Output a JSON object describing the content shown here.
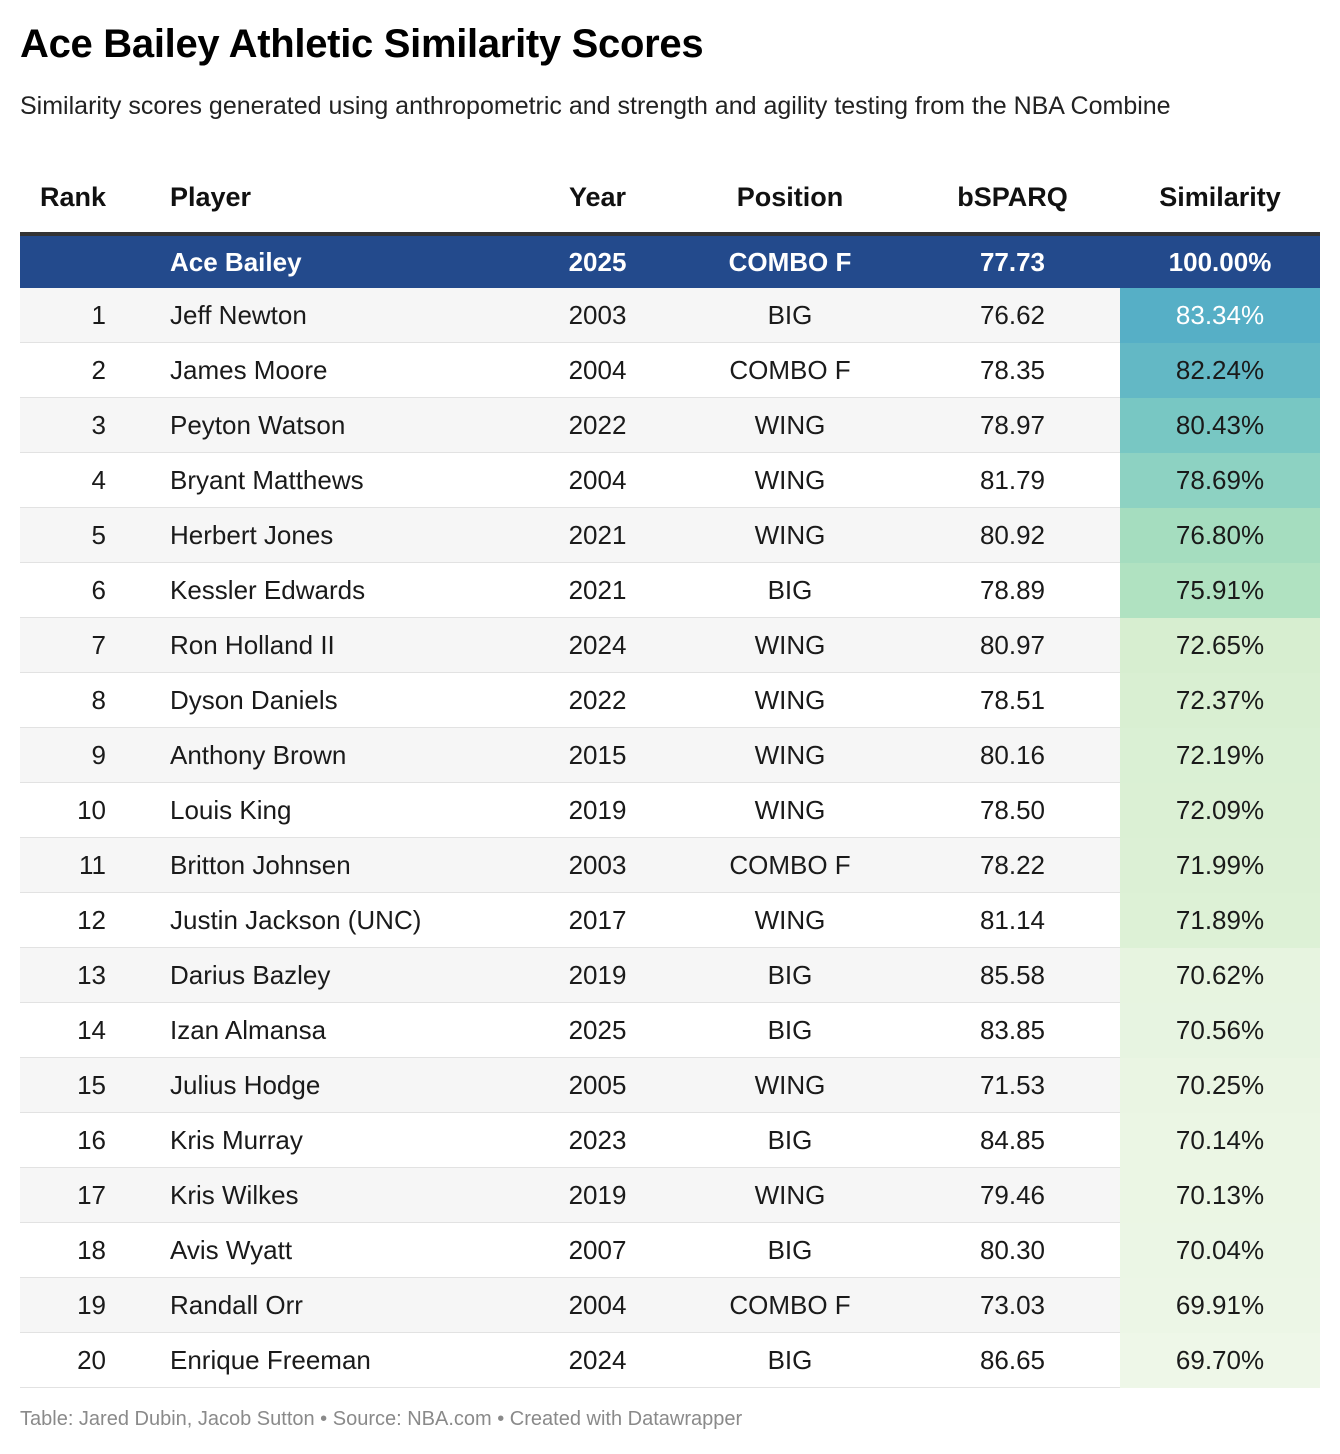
{
  "title": "Ace Bailey Athletic Similarity Scores",
  "subtitle": "Similarity scores generated using anthropometric and strength and agility testing from the NBA Combine",
  "footer": "Table: Jared Dubin, Jacob Sutton • Source: NBA.com • Created with Datawrapper",
  "chart_data": {
    "type": "table",
    "columns": [
      "Rank",
      "Player",
      "Year",
      "Position",
      "bSPARQ",
      "Similarity"
    ],
    "reference_row": {
      "rank": "",
      "player": "Ace Bailey",
      "year": "2025",
      "position": "COMBO F",
      "bsparq": "77.73",
      "similarity": "100.00%"
    },
    "rows": [
      {
        "rank": "1",
        "player": "Jeff Newton",
        "year": "2003",
        "position": "BIG",
        "bsparq": "76.62",
        "similarity": "83.34%",
        "similarity_value": 83.34
      },
      {
        "rank": "2",
        "player": "James Moore",
        "year": "2004",
        "position": "COMBO F",
        "bsparq": "78.35",
        "similarity": "82.24%",
        "similarity_value": 82.24
      },
      {
        "rank": "3",
        "player": "Peyton Watson",
        "year": "2022",
        "position": "WING",
        "bsparq": "78.97",
        "similarity": "80.43%",
        "similarity_value": 80.43
      },
      {
        "rank": "4",
        "player": "Bryant Matthews",
        "year": "2004",
        "position": "WING",
        "bsparq": "81.79",
        "similarity": "78.69%",
        "similarity_value": 78.69
      },
      {
        "rank": "5",
        "player": "Herbert Jones",
        "year": "2021",
        "position": "WING",
        "bsparq": "80.92",
        "similarity": "76.80%",
        "similarity_value": 76.8
      },
      {
        "rank": "6",
        "player": "Kessler Edwards",
        "year": "2021",
        "position": "BIG",
        "bsparq": "78.89",
        "similarity": "75.91%",
        "similarity_value": 75.91
      },
      {
        "rank": "7",
        "player": "Ron Holland II",
        "year": "2024",
        "position": "WING",
        "bsparq": "80.97",
        "similarity": "72.65%",
        "similarity_value": 72.65
      },
      {
        "rank": "8",
        "player": "Dyson Daniels",
        "year": "2022",
        "position": "WING",
        "bsparq": "78.51",
        "similarity": "72.37%",
        "similarity_value": 72.37
      },
      {
        "rank": "9",
        "player": "Anthony Brown",
        "year": "2015",
        "position": "WING",
        "bsparq": "80.16",
        "similarity": "72.19%",
        "similarity_value": 72.19
      },
      {
        "rank": "10",
        "player": "Louis King",
        "year": "2019",
        "position": "WING",
        "bsparq": "78.50",
        "similarity": "72.09%",
        "similarity_value": 72.09
      },
      {
        "rank": "11",
        "player": "Britton Johnsen",
        "year": "2003",
        "position": "COMBO F",
        "bsparq": "78.22",
        "similarity": "71.99%",
        "similarity_value": 71.99
      },
      {
        "rank": "12",
        "player": "Justin Jackson (UNC)",
        "year": "2017",
        "position": "WING",
        "bsparq": "81.14",
        "similarity": "71.89%",
        "similarity_value": 71.89
      },
      {
        "rank": "13",
        "player": "Darius Bazley",
        "year": "2019",
        "position": "BIG",
        "bsparq": "85.58",
        "similarity": "70.62%",
        "similarity_value": 70.62
      },
      {
        "rank": "14",
        "player": "Izan Almansa",
        "year": "2025",
        "position": "BIG",
        "bsparq": "83.85",
        "similarity": "70.56%",
        "similarity_value": 70.56
      },
      {
        "rank": "15",
        "player": "Julius Hodge",
        "year": "2005",
        "position": "WING",
        "bsparq": "71.53",
        "similarity": "70.25%",
        "similarity_value": 70.25
      },
      {
        "rank": "16",
        "player": "Kris Murray",
        "year": "2023",
        "position": "BIG",
        "bsparq": "84.85",
        "similarity": "70.14%",
        "similarity_value": 70.14
      },
      {
        "rank": "17",
        "player": "Kris Wilkes",
        "year": "2019",
        "position": "WING",
        "bsparq": "79.46",
        "similarity": "70.13%",
        "similarity_value": 70.13
      },
      {
        "rank": "18",
        "player": "Avis Wyatt",
        "year": "2007",
        "position": "BIG",
        "bsparq": "80.30",
        "similarity": "70.04%",
        "similarity_value": 70.04
      },
      {
        "rank": "19",
        "player": "Randall Orr",
        "year": "2004",
        "position": "COMBO F",
        "bsparq": "73.03",
        "similarity": "69.91%",
        "similarity_value": 69.91
      },
      {
        "rank": "20",
        "player": "Enrique Freeman",
        "year": "2024",
        "position": "BIG",
        "bsparq": "86.65",
        "similarity": "69.70%",
        "similarity_value": 69.7
      }
    ],
    "highlight_color": "#234a8c",
    "similarity_color_scale": {
      "range": [
        69.7,
        83.34
      ],
      "stops": [
        "#eef7e8",
        "#d3edcc",
        "#a8dfbf",
        "#7ecbc3",
        "#56afc6"
      ]
    }
  }
}
